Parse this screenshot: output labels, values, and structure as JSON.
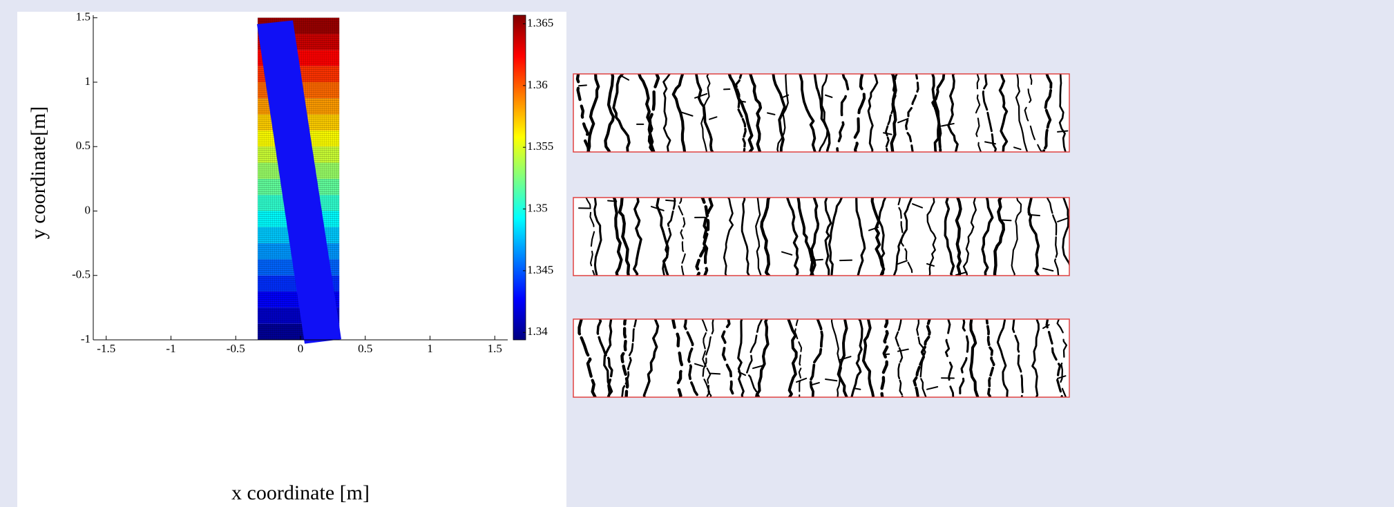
{
  "chart_data": {
    "type": "heatmap",
    "xlabel": "x coordinate [m]",
    "ylabel": "y coordinate[m]",
    "xlim": [
      -1.6,
      1.6
    ],
    "ylim": [
      -1,
      1.52
    ],
    "xticks": [
      -1.5,
      -1,
      -0.5,
      0,
      0.5,
      1,
      1.5
    ],
    "yticks": [
      -1,
      -0.5,
      0,
      0.5,
      1,
      1.5
    ],
    "x_edges": [
      -0.33,
      0.3
    ],
    "y_edges": [
      -1,
      -0.875,
      -0.75,
      -0.625,
      -0.5,
      -0.375,
      -0.25,
      -0.125,
      0,
      0.125,
      0.25,
      0.375,
      0.5,
      0.625,
      0.75,
      0.875,
      1,
      1.125,
      1.25,
      1.375,
      1.5
    ],
    "values": [
      1.34,
      1.3413,
      1.3426,
      1.3439,
      1.3453,
      1.3466,
      1.3479,
      1.3492,
      1.3505,
      1.3518,
      1.3532,
      1.3545,
      1.3558,
      1.3571,
      1.3584,
      1.3597,
      1.3611,
      1.3624,
      1.3637,
      1.365
    ],
    "colormap": "jet",
    "clim": [
      1.3394,
      1.3657
    ],
    "cticks": [
      1.34,
      1.345,
      1.35,
      1.355,
      1.36,
      1.365
    ],
    "overlay": {
      "color": "#1010f5",
      "x": [
        -0.336,
        -0.059,
        0.315,
        0.032
      ],
      "y": [
        1.45,
        1.48,
        -0.995,
        -1.03
      ]
    }
  }
}
